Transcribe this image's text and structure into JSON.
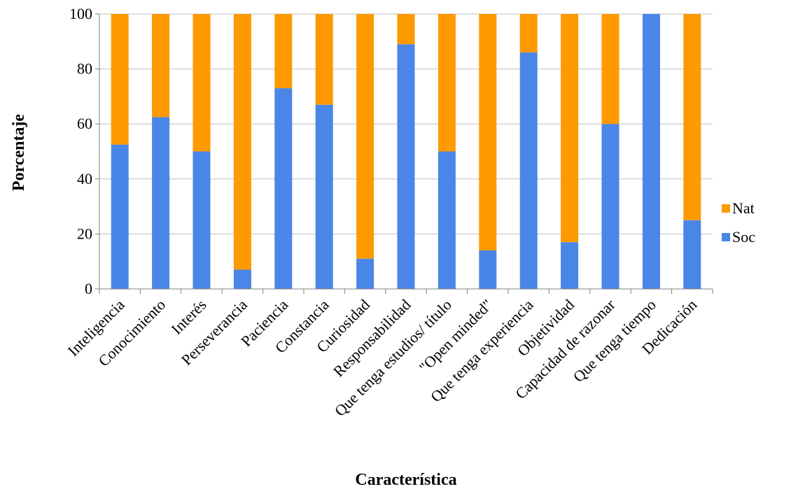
{
  "chart_data": {
    "type": "bar",
    "stacked": true,
    "xlabel": "Característica",
    "ylabel": "Porcentaje",
    "ylim": [
      0,
      100
    ],
    "yticks": [
      0,
      20,
      40,
      60,
      80,
      100
    ],
    "grid": true,
    "legend_position": "right",
    "categories": [
      "Inteligencia",
      "Conocimiento",
      "Interés",
      "Perseverancia",
      "Paciencia",
      "Constancia",
      "Curiosidad",
      "Responsabilidad",
      "Que tenga estudios/ título",
      "\"Open minded\"",
      "Que tenga experiencia",
      "Objetividad",
      "Capacidad de razonar",
      "Que tenga tiempo",
      "Dedicación"
    ],
    "series": [
      {
        "name": "Soc",
        "color": "#4a86e8",
        "values": [
          52.5,
          62.5,
          50,
          7,
          73,
          67,
          11,
          89,
          50,
          14,
          86,
          17,
          60,
          100,
          25
        ]
      },
      {
        "name": "Nat",
        "color": "#ff9900",
        "values": [
          47.5,
          37.5,
          50,
          93,
          27,
          33,
          89,
          11,
          50,
          86,
          14,
          83,
          40,
          0,
          75
        ]
      }
    ],
    "legend_order": [
      "Nat",
      "Soc"
    ]
  }
}
